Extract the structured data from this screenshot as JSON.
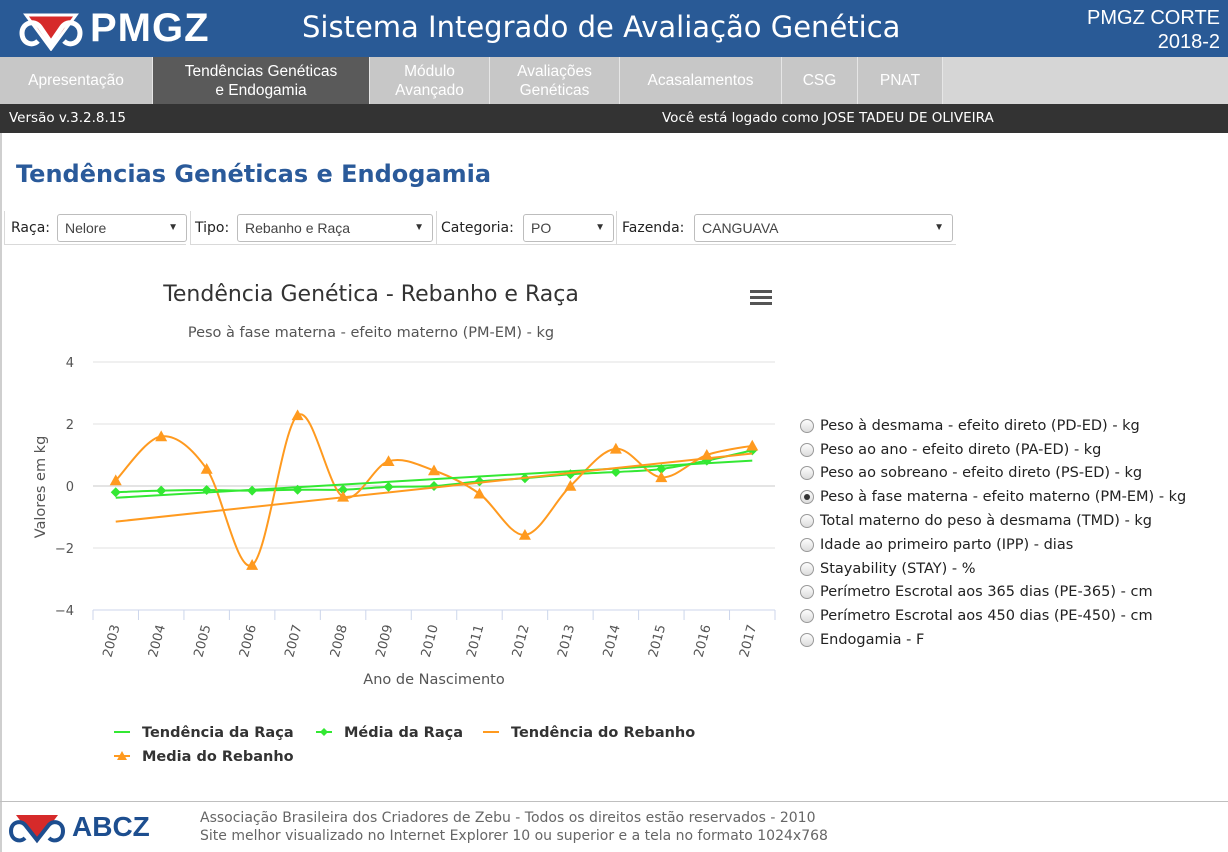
{
  "header": {
    "logo_text": "PMGZ",
    "title": "Sistema Integrado de Avaliação Genética",
    "edition_line1": "PMGZ CORTE",
    "edition_line2": "2018-2"
  },
  "nav": {
    "items": [
      {
        "line1": "Apresentação",
        "line2": ""
      },
      {
        "line1": "Tendências Genéticas",
        "line2": "e Endogamia"
      },
      {
        "line1": "Módulo",
        "line2": "Avançado"
      },
      {
        "line1": "Avaliações",
        "line2": "Genéticas"
      },
      {
        "line1": "Acasalamentos",
        "line2": ""
      },
      {
        "line1": "CSG",
        "line2": ""
      },
      {
        "line1": "PNAT",
        "line2": ""
      }
    ],
    "active_index": 1
  },
  "status": {
    "version": "Versão v.3.2.8.15",
    "logged_in": "Você está logado como JOSE TADEU DE OLIVEIRA"
  },
  "page": {
    "title": "Tendências Genéticas e Endogamia"
  },
  "filters": {
    "raca_label": "Raça:",
    "raca_value": "Nelore",
    "tipo_label": "Tipo:",
    "tipo_value": "Rebanho e Raça",
    "categoria_label": "Categoria:",
    "categoria_value": "PO",
    "fazenda_label": "Fazenda:",
    "fazenda_value": "CANGUAVA"
  },
  "chart_data": {
    "type": "line",
    "title": "Tendência Genética - Rebanho e Raça",
    "subtitle": "Peso à fase materna - efeito materno (PM-EM) - kg",
    "xlabel": "Ano de Nascimento",
    "ylabel": "Valores em kg",
    "categories": [
      "2003",
      "2004",
      "2005",
      "2006",
      "2007",
      "2008",
      "2009",
      "2010",
      "2011",
      "2012",
      "2013",
      "2014",
      "2015",
      "2016",
      "2017"
    ],
    "ylim": [
      -4,
      4
    ],
    "yticks": [
      -4,
      -2,
      0,
      2,
      4
    ],
    "ytick_labels": [
      "−4",
      "−2",
      "0",
      "2",
      "4"
    ],
    "grid": true,
    "legend_position": "bottom",
    "series": [
      {
        "name": "Tendência da Raça",
        "kind": "trend",
        "color": "#33e833",
        "start": -0.38,
        "end": 0.82
      },
      {
        "name": "Média da Raça",
        "kind": "points",
        "color": "#33e833",
        "marker": "diamond",
        "values": [
          -0.2,
          -0.15,
          -0.13,
          -0.15,
          -0.12,
          -0.12,
          -0.03,
          0.0,
          0.15,
          0.25,
          0.38,
          0.45,
          0.55,
          0.82,
          1.15
        ]
      },
      {
        "name": "Tendência do Rebanho",
        "kind": "trend",
        "color": "#ff9a1f",
        "start": -1.15,
        "end": 1.05
      },
      {
        "name": "Media do Rebanho",
        "kind": "points",
        "color": "#ff9a1f",
        "marker": "triangle",
        "values": [
          0.18,
          1.6,
          0.55,
          -2.55,
          2.28,
          -0.35,
          0.8,
          0.5,
          -0.25,
          -1.58,
          0.0,
          1.2,
          0.28,
          1.0,
          1.3
        ]
      }
    ]
  },
  "traits": {
    "options": [
      "Peso à desmama - efeito direto (PD-ED) - kg",
      "Peso ao ano - efeito direto (PA-ED) - kg",
      "Peso ao sobreano - efeito direto (PS-ED) - kg",
      "Peso à fase materna - efeito materno (PM-EM) - kg",
      "Total materno do peso à desmama (TMD) - kg",
      "Idade ao primeiro parto (IPP) - dias",
      "Stayability (STAY) - %",
      "Perímetro Escrotal aos 365 dias (PE-365) - cm",
      "Perímetro Escrotal aos 450 dias (PE-450) - cm",
      "Endogamia - F"
    ],
    "selected_index": 3
  },
  "footer": {
    "logo_text": "ABCZ",
    "line1": "Associação Brasileira dos Criadores de Zebu - Todos os direitos estão reservados - 2010",
    "line2": "Site melhor visualizado no Internet Explorer 10 ou superior e a tela no formato 1024x768"
  },
  "colors": {
    "header_bg": "#295a96",
    "status_bg": "#333333",
    "title_blue": "#2a5a9a",
    "race_green": "#33e833",
    "herd_orange": "#ff9a1f"
  },
  "icons": {
    "logo": "pmgz-logo-icon",
    "menu": "hamburger-menu-icon",
    "footer_logo": "abcz-logo-icon"
  }
}
